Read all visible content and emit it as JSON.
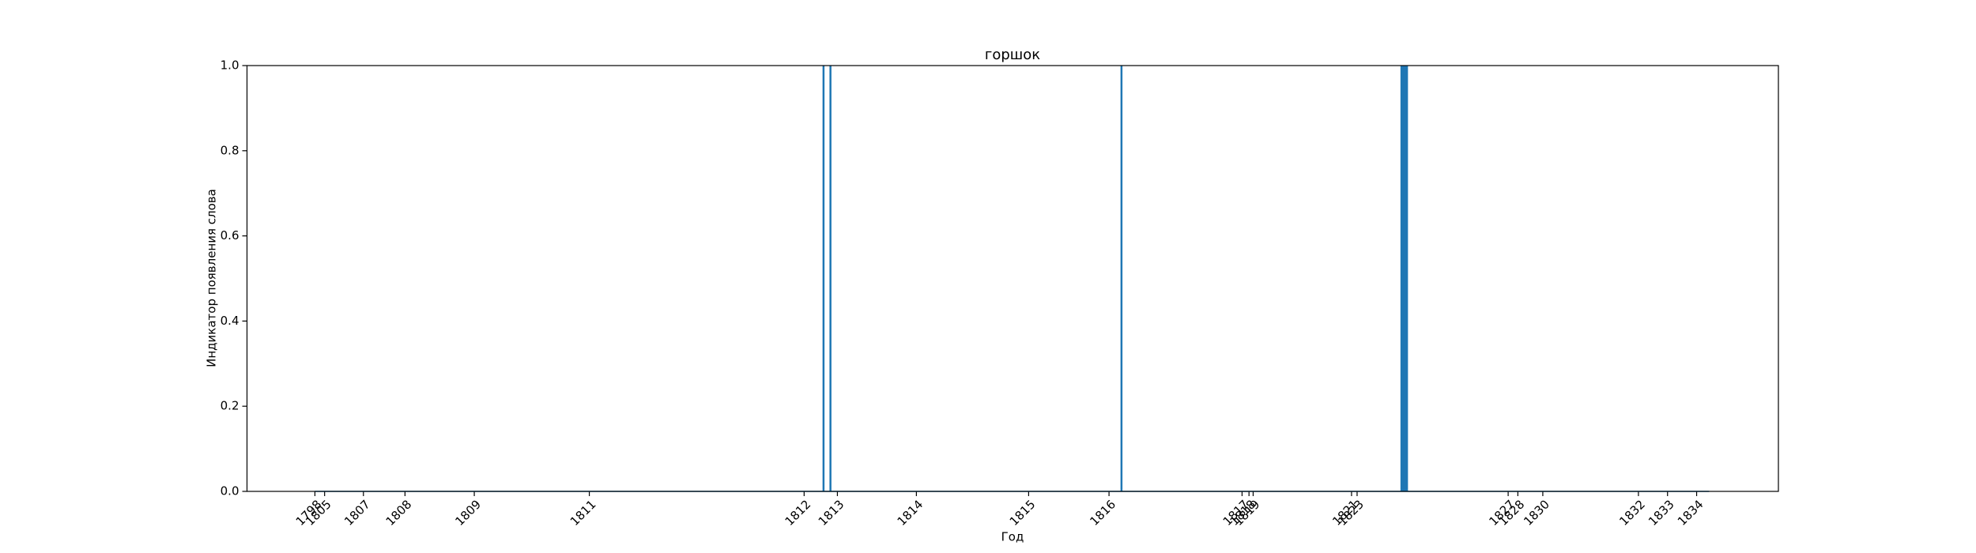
{
  "chart_data": {
    "type": "bar",
    "title": "горшок",
    "x_label": "Год",
    "y_label": "Индикатор появления слова",
    "color": "#1f77b4",
    "x": [
      0,
      367,
      372,
      582,
      784,
      785,
      786,
      787,
      788,
      1006
    ],
    "values": [
      0,
      1,
      1,
      1,
      1,
      1,
      1,
      1,
      1,
      0
    ],
    "xlim": [
      -49,
      1056
    ],
    "ylim": [
      0,
      1
    ],
    "xticks": [
      {
        "value": 0,
        "label": "1798"
      },
      {
        "value": 7,
        "label": "1805"
      },
      {
        "value": 35,
        "label": "1807"
      },
      {
        "value": 65,
        "label": "1808"
      },
      {
        "value": 115,
        "label": "1809"
      },
      {
        "value": 198,
        "label": "1811"
      },
      {
        "value": 353,
        "label": "1812"
      },
      {
        "value": 377,
        "label": "1813"
      },
      {
        "value": 434,
        "label": "1814"
      },
      {
        "value": 515,
        "label": "1815"
      },
      {
        "value": 573,
        "label": "1816"
      },
      {
        "value": 669,
        "label": "1817"
      },
      {
        "value": 674,
        "label": "1818"
      },
      {
        "value": 677,
        "label": "1819"
      },
      {
        "value": 748,
        "label": "1821"
      },
      {
        "value": 752,
        "label": "1823"
      },
      {
        "value": 861,
        "label": "1827"
      },
      {
        "value": 868,
        "label": "1828"
      },
      {
        "value": 886,
        "label": "1830"
      },
      {
        "value": 955,
        "label": "1832"
      },
      {
        "value": 976,
        "label": "1833"
      },
      {
        "value": 997,
        "label": "1834"
      }
    ],
    "yticks": [
      {
        "value": 0,
        "label": "0.0"
      },
      0.2,
      0.4,
      0.6,
      0.8,
      {
        "value": 1,
        "label": "1.0"
      }
    ]
  }
}
